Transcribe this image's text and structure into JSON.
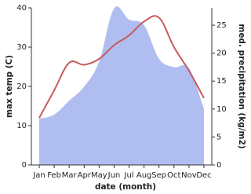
{
  "chart_data": {
    "type": "line",
    "x_label": "date (month)",
    "y_label": "max temp (C)",
    "y2_label": "med. precipitation (kg/m2)",
    "categories": [
      "Jan",
      "Feb",
      "Mar",
      "Apr",
      "May",
      "Jun",
      "Jul",
      "Aug",
      "Sep",
      "Oct",
      "Nov",
      "Dec"
    ],
    "series": [
      {
        "name": "med. precipitation",
        "type": "area",
        "axis": "y2",
        "color": "#b0bdf0",
        "values": [
          8.3,
          9,
          11.5,
          14,
          18.5,
          28,
          26,
          25,
          19,
          17.5,
          17.3,
          10
        ]
      },
      {
        "name": "max temp",
        "type": "line",
        "axis": "y",
        "color": "#c85a5a",
        "values": [
          12,
          19,
          26,
          25.5,
          27,
          30.5,
          33,
          36.5,
          37.5,
          30,
          24,
          17
        ]
      }
    ],
    "ylim": [
      0,
      40
    ],
    "yticks": [
      0,
      10,
      20,
      30,
      40
    ],
    "y2lim": [
      0,
      28.1
    ],
    "y2ticks": [
      0,
      5,
      10,
      15,
      20,
      25
    ],
    "grid": false
  }
}
